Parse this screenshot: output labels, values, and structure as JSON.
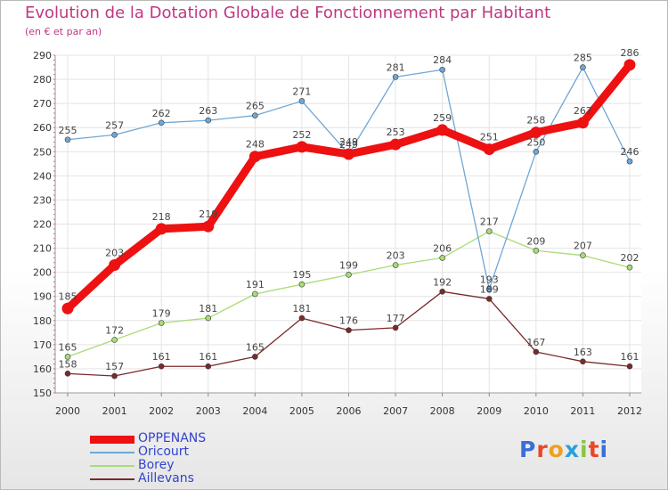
{
  "title": "Evolution de la Dotation Globale de Fonctionnement par Habitant",
  "subtitle": "(en € et par an)",
  "logo": {
    "text": "Proxiti",
    "letters": [
      "P",
      "r",
      "o",
      "x",
      "i",
      "t",
      "i"
    ],
    "colors": [
      "#3a6fd8",
      "#e8472a",
      "#f0a020",
      "#2aa0d8",
      "#8ac640",
      "#e8472a",
      "#3a6fd8"
    ]
  },
  "chart_data": {
    "type": "line",
    "title": "Evolution de la Dotation Globale de Fonctionnement par Habitant",
    "ylabel": "(en € et par an)",
    "xlabel": "",
    "categories": [
      "2000",
      "2001",
      "2002",
      "2003",
      "2004",
      "2005",
      "2006",
      "2007",
      "2008",
      "2009",
      "2010",
      "2011",
      "2012"
    ],
    "ylim": [
      150,
      290
    ],
    "yticks": [
      150,
      160,
      170,
      180,
      190,
      200,
      210,
      220,
      230,
      240,
      250,
      260,
      270,
      280,
      290
    ],
    "grid": true,
    "series": [
      {
        "name": "OPPENANS",
        "color": "#ee1111",
        "values": [
          185,
          203,
          218,
          219,
          248,
          252,
          249,
          253,
          259,
          251,
          258,
          262,
          286
        ]
      },
      {
        "name": "Oricourt",
        "color": "#6fa7d6",
        "values": [
          255,
          257,
          262,
          263,
          265,
          271,
          249,
          281,
          284,
          193,
          250,
          285,
          246
        ]
      },
      {
        "name": "Borey",
        "color": "#a8dc78",
        "values": [
          165,
          172,
          179,
          181,
          191,
          195,
          199,
          203,
          206,
          217,
          209,
          207,
          202
        ]
      },
      {
        "name": "Aillevans",
        "color": "#7a2a2a",
        "values": [
          158,
          157,
          161,
          161,
          165,
          181,
          176,
          177,
          192,
          189,
          167,
          163,
          161
        ]
      }
    ]
  }
}
